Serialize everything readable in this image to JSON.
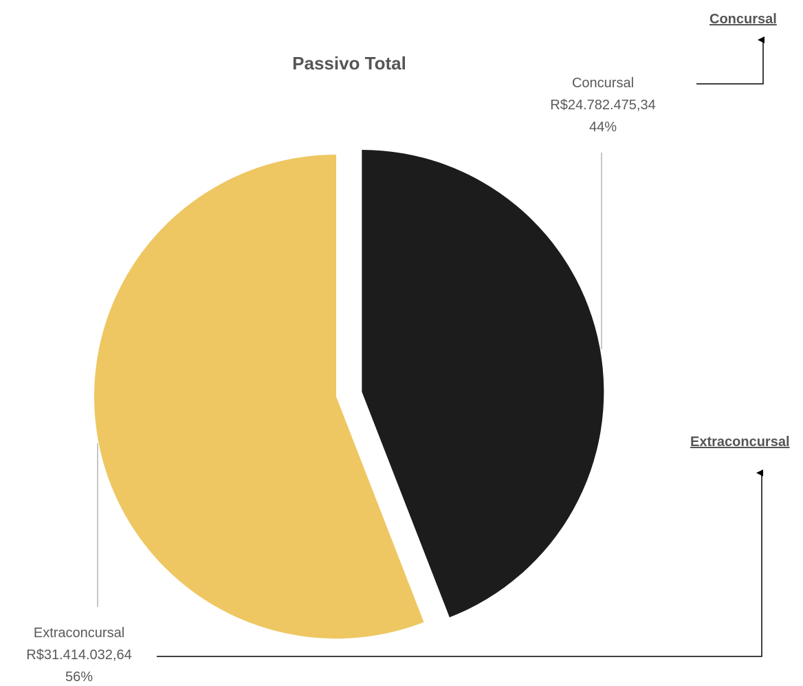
{
  "chart_data": {
    "type": "pie",
    "title": "Passivo Total",
    "slices": [
      {
        "label": "Concursal",
        "value": 24782475.34,
        "value_text": "R$24.782.475,34",
        "percent": 44,
        "percent_text": "44%",
        "color": "#1c1c1c",
        "exploded": true
      },
      {
        "label": "Extraconcursal",
        "value": 31414032.64,
        "value_text": "R$31.414.032,64",
        "percent": 56,
        "percent_text": "56%",
        "color": "#eec762",
        "exploded": false
      }
    ],
    "legend": "none"
  },
  "side_links": {
    "concursal": "Concursal",
    "extraconcursal": "Extraconcursal"
  }
}
